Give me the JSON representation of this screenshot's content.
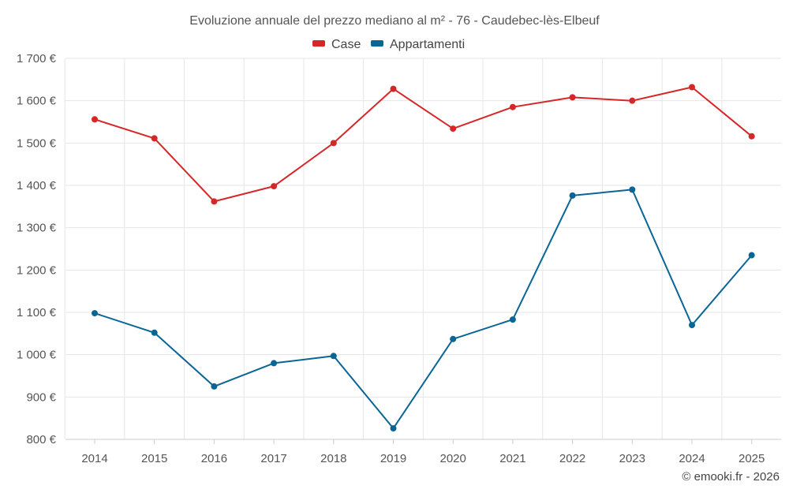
{
  "chart_data": {
    "type": "line",
    "title": "Evoluzione annuale del prezzo mediano al m² - 76 - Caudebec-lès-Elbeuf",
    "categories": [
      "2014",
      "2015",
      "2016",
      "2017",
      "2018",
      "2019",
      "2020",
      "2021",
      "2022",
      "2023",
      "2024",
      "2025"
    ],
    "series": [
      {
        "name": "Case",
        "color": "#d62728",
        "values": [
          1556,
          1511,
          1362,
          1398,
          1500,
          1628,
          1534,
          1585,
          1608,
          1600,
          1632,
          1516
        ]
      },
      {
        "name": "Appartamenti",
        "color": "#0a6597",
        "values": [
          1098,
          1052,
          925,
          980,
          997,
          826,
          1037,
          1083,
          1376,
          1390,
          1070,
          1235
        ]
      }
    ],
    "ylim": [
      800,
      1700
    ],
    "yticks": [
      800,
      900,
      1000,
      1100,
      1200,
      1300,
      1400,
      1500,
      1600,
      1700
    ],
    "ytick_labels": [
      "800 €",
      "900 €",
      "1 000 €",
      "1 100 €",
      "1 200 €",
      "1 300 €",
      "1 400 €",
      "1 500 €",
      "1 600 €",
      "1 700 €"
    ],
    "xlabel": "",
    "ylabel": "",
    "grid": true,
    "legend_position": "top-center"
  },
  "credit": "© emooki.fr - 2026"
}
